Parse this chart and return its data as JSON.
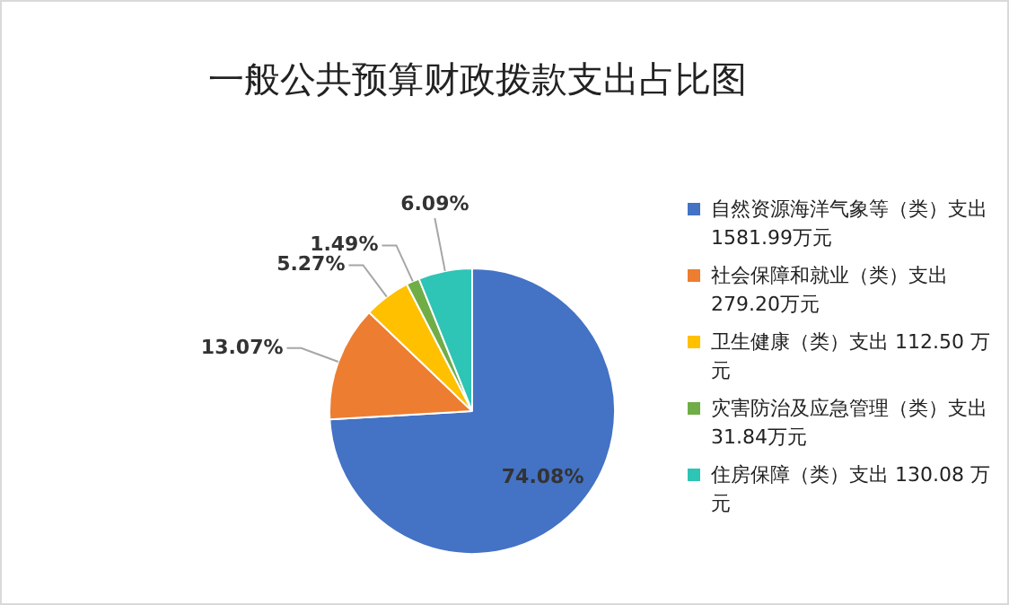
{
  "chart_data": {
    "type": "pie",
    "title": "一般公共预算财政拨款支出占比图",
    "categories": [
      "自然资源海洋气象等（类）支出 1581.99万元",
      "社会保障和就业（类）支出 279.20万元",
      "卫生健康（类）支出 112.50 万元",
      "灾害防治及应急管理（类）支出 31.84万元",
      "住房保障（类）支出 130.08 万元"
    ],
    "values": [
      74.08,
      13.07,
      5.27,
      1.49,
      6.09
    ],
    "value_labels": [
      "74.08%",
      "13.07%",
      "5.27%",
      "1.49%",
      "6.09%"
    ],
    "colors": [
      "#4472c4",
      "#ed7d31",
      "#ffc000",
      "#70ad47",
      "#2ec4b6"
    ],
    "legend": "right"
  }
}
